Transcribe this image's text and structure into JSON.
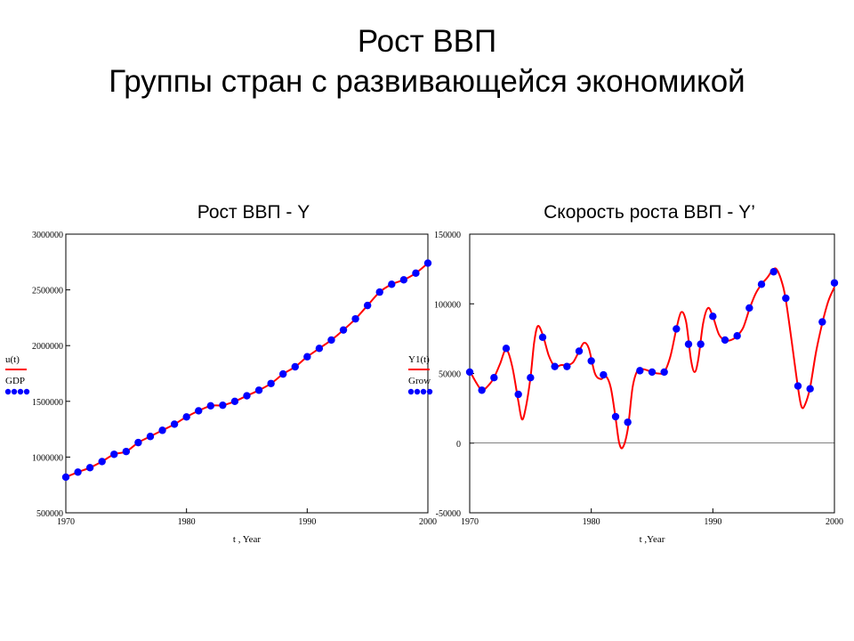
{
  "slide": {
    "title_line1": "Рост ВВП",
    "title_line2": "Группы стран с развивающейся экономикой"
  },
  "charts": {
    "left": {
      "heading": "Рост ВВП - Y",
      "xlabel": "t , Year",
      "legend_line": "u(t)",
      "legend_points": "GDP"
    },
    "right": {
      "heading": "Скорость роста ВВП - Y’",
      "xlabel": "t ,Year",
      "legend_line": "Y1(t)",
      "legend_points": "Grow"
    }
  },
  "colors": {
    "curve": "#ff0000",
    "points": "#0000ff",
    "axis": "#000000"
  },
  "chart_data": [
    {
      "type": "line",
      "title": "Рост ВВП - Y",
      "xlabel": "t , Year",
      "xlim": [
        1970,
        2000
      ],
      "ylim": [
        500000,
        3000000
      ],
      "xticks": [
        "1970",
        "1980",
        "1990",
        "2000"
      ],
      "yticks": [
        "500000",
        "1000000",
        "1500000",
        "2000000",
        "2500000",
        "3000000"
      ],
      "series": [
        {
          "name": "u(t)",
          "style": "line",
          "x": [
            1970,
            1971,
            1972,
            1973,
            1974,
            1975,
            1976,
            1977,
            1978,
            1979,
            1980,
            1981,
            1982,
            1983,
            1984,
            1985,
            1986,
            1987,
            1988,
            1989,
            1990,
            1991,
            1992,
            1993,
            1994,
            1995,
            1996,
            1997,
            1998,
            1999,
            2000
          ],
          "values": [
            820000,
            865000,
            905000,
            960000,
            1025000,
            1050000,
            1130000,
            1185000,
            1240000,
            1295000,
            1360000,
            1415000,
            1460000,
            1465000,
            1500000,
            1550000,
            1600000,
            1660000,
            1745000,
            1810000,
            1900000,
            1975000,
            2050000,
            2140000,
            2240000,
            2360000,
            2480000,
            2550000,
            2590000,
            2650000,
            2740000
          ]
        },
        {
          "name": "GDP",
          "style": "points",
          "x": [
            1970,
            1971,
            1972,
            1973,
            1974,
            1975,
            1976,
            1977,
            1978,
            1979,
            1980,
            1981,
            1982,
            1983,
            1984,
            1985,
            1986,
            1987,
            1988,
            1989,
            1990,
            1991,
            1992,
            1993,
            1994,
            1995,
            1996,
            1997,
            1998,
            1999,
            2000
          ],
          "values": [
            820000,
            865000,
            905000,
            960000,
            1025000,
            1050000,
            1130000,
            1185000,
            1240000,
            1295000,
            1360000,
            1415000,
            1460000,
            1465000,
            1500000,
            1550000,
            1600000,
            1660000,
            1745000,
            1810000,
            1900000,
            1975000,
            2050000,
            2140000,
            2240000,
            2360000,
            2480000,
            2550000,
            2590000,
            2650000,
            2740000
          ]
        }
      ]
    },
    {
      "type": "line",
      "title": "Скорость роста ВВП - Y’",
      "xlabel": "t ,Year",
      "xlim": [
        1970,
        2000
      ],
      "ylim": [
        -50000,
        150000
      ],
      "xticks": [
        "1970",
        "1980",
        "1990",
        "2000"
      ],
      "yticks": [
        "-50000",
        "0",
        "50000",
        "100000",
        "150000"
      ],
      "series": [
        {
          "name": "Y1(t)",
          "style": "line",
          "x": [
            1970,
            1970.5,
            1971,
            1971.5,
            1972,
            1972.5,
            1973,
            1973.5,
            1974,
            1974.3,
            1974.6,
            1975,
            1975.3,
            1975.6,
            1976,
            1976.5,
            1977,
            1977.5,
            1978,
            1978.5,
            1979,
            1979.4,
            1979.8,
            1980.3,
            1980.8,
            1981.2,
            1981.6,
            1982,
            1982.3,
            1982.6,
            1983,
            1983.4,
            1983.8,
            1984.3,
            1985,
            1985.5,
            1986,
            1986.5,
            1987,
            1987.4,
            1987.8,
            1988.2,
            1988.5,
            1988.8,
            1989.2,
            1989.6,
            1990,
            1990.5,
            1991,
            1991.5,
            1992,
            1992.5,
            1993,
            1993.5,
            1994,
            1994.5,
            1995,
            1995.3,
            1995.7,
            1996,
            1996.5,
            1997,
            1997.3,
            1997.6,
            1998,
            1998.5,
            1999,
            1999.5,
            2000
          ],
          "values": [
            52000,
            44000,
            38000,
            41000,
            47000,
            57000,
            67000,
            55000,
            30000,
            17000,
            25000,
            47000,
            72000,
            84000,
            78000,
            63000,
            55000,
            56000,
            56000,
            58000,
            66000,
            72000,
            68000,
            50000,
            46000,
            48000,
            40000,
            18000,
            0,
            -3000,
            10000,
            40000,
            52000,
            53000,
            51000,
            50000,
            51000,
            62000,
            82000,
            94000,
            87000,
            60000,
            51000,
            60000,
            86000,
            97000,
            91000,
            78000,
            74000,
            74000,
            77000,
            83000,
            96000,
            107000,
            114000,
            119000,
            125000,
            124000,
            115000,
            103000,
            72000,
            40000,
            26000,
            28000,
            40000,
            66000,
            86000,
            102000,
            112000
          ]
        },
        {
          "name": "Grow",
          "style": "points",
          "x": [
            1970,
            1971,
            1972,
            1973,
            1974,
            1975,
            1976,
            1977,
            1978,
            1979,
            1980,
            1981,
            1982,
            1983,
            1984,
            1985,
            1986,
            1987,
            1988,
            1989,
            1990,
            1991,
            1992,
            1993,
            1994,
            1995,
            1996,
            1997,
            1998,
            1999,
            2000
          ],
          "values": [
            51000,
            38000,
            47000,
            68000,
            35000,
            47000,
            76000,
            55000,
            55000,
            66000,
            59000,
            49000,
            19000,
            15000,
            52000,
            51000,
            51000,
            82000,
            71000,
            71000,
            91000,
            74000,
            77000,
            97000,
            114000,
            123000,
            104000,
            41000,
            39000,
            87000,
            115000
          ]
        }
      ]
    }
  ]
}
